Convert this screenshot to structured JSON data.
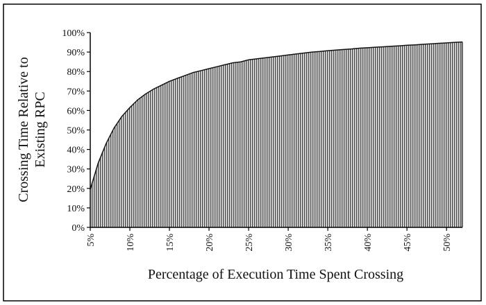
{
  "chart_data": {
    "type": "area",
    "title": "",
    "xlabel": "Percentage of Execution Time Spent Crossing",
    "ylabel_lines": [
      "Crossing Time Relative to",
      "Existing RPC"
    ],
    "x_ticks": [
      "5%",
      "10%",
      "15%",
      "20%",
      "25%",
      "30%",
      "35%",
      "40%",
      "45%",
      "50%"
    ],
    "y_ticks": [
      "0%",
      "10%",
      "20%",
      "30%",
      "40%",
      "50%",
      "60%",
      "70%",
      "80%",
      "90%",
      "100%"
    ],
    "xlim": [
      5,
      52
    ],
    "ylim": [
      0,
      100
    ],
    "grid": false,
    "legend": "none",
    "series": [
      {
        "x": [
          5,
          6,
          7,
          8,
          9,
          10,
          11,
          12,
          13,
          14,
          15,
          16,
          17,
          18,
          19,
          20,
          21,
          22,
          23,
          24,
          25,
          26,
          27,
          28,
          29,
          30,
          31,
          32,
          33,
          34,
          35,
          36,
          37,
          38,
          39,
          40,
          41,
          42,
          43,
          44,
          45,
          46,
          47,
          48,
          49,
          50,
          51,
          52
        ],
        "values": [
          19.5,
          33,
          43,
          51,
          57,
          61.5,
          65.5,
          68.5,
          71,
          73,
          75,
          76.5,
          78,
          79.5,
          80.5,
          81.5,
          82.5,
          83.5,
          84.5,
          85,
          86,
          86.5,
          87,
          87.5,
          88,
          88.5,
          89,
          89.5,
          90,
          90.3,
          90.7,
          91,
          91.3,
          91.6,
          92,
          92.2,
          92.5,
          92.7,
          93,
          93.2,
          93.5,
          93.7,
          94,
          94.2,
          94.5,
          94.7,
          95,
          95.2
        ]
      }
    ],
    "colors": {
      "fill_hatch": "#555555",
      "fill_background": "#e6e6e6",
      "axis": "#000000",
      "frame": "#000000"
    }
  }
}
